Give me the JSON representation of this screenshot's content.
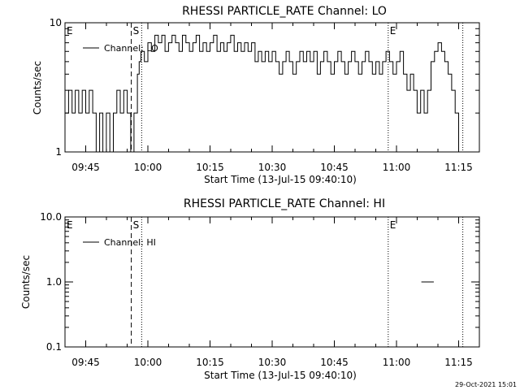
{
  "footer": {
    "timestamp": "29-Oct-2021 15:01"
  },
  "chart_data": [
    {
      "type": "line",
      "title": "RHESSI PARTICLE_RATE Channel: LO",
      "xlabel": "Start Time (13-Jul-15 09:40:10)",
      "ylabel": "Counts/sec",
      "yscale": "log",
      "ylim": [
        1,
        10
      ],
      "xlim": [
        "09:40",
        "11:20"
      ],
      "x_ticks": [
        "09:45",
        "10:00",
        "10:15",
        "10:30",
        "10:45",
        "11:00",
        "11:15"
      ],
      "y_ticks": [
        "1",
        "10"
      ],
      "legend": {
        "placement": "top-left",
        "entries": [
          "Channel: LO"
        ]
      },
      "markers": [
        {
          "label": "E",
          "time": "09:40",
          "style": "none"
        },
        {
          "label": "S",
          "time": "09:56",
          "style": "dashed"
        },
        {
          "label": "",
          "time": "09:58.5",
          "style": "dotted"
        },
        {
          "label": "E",
          "time": "10:58",
          "style": "dotted"
        },
        {
          "label": "",
          "time": "11:16",
          "style": "dotted"
        }
      ],
      "series": [
        {
          "name": "Channel: LO",
          "x": [
            9.667,
            9.681,
            9.695,
            9.708,
            9.722,
            9.736,
            9.75,
            9.764,
            9.778,
            9.792,
            9.806,
            9.819,
            9.833,
            9.847,
            9.861,
            9.875,
            9.889,
            9.903,
            9.917,
            9.931,
            9.944,
            9.958,
            9.965,
            9.972,
            9.986,
            10.0,
            10.014,
            10.028,
            10.042,
            10.056,
            10.069,
            10.083,
            10.097,
            10.111,
            10.125,
            10.139,
            10.153,
            10.167,
            10.181,
            10.194,
            10.208,
            10.222,
            10.236,
            10.25,
            10.264,
            10.278,
            10.292,
            10.306,
            10.319,
            10.333,
            10.347,
            10.361,
            10.375,
            10.389,
            10.403,
            10.417,
            10.431,
            10.444,
            10.458,
            10.472,
            10.486,
            10.5,
            10.514,
            10.528,
            10.542,
            10.556,
            10.569,
            10.583,
            10.597,
            10.611,
            10.625,
            10.639,
            10.653,
            10.667,
            10.681,
            10.694,
            10.708,
            10.722,
            10.736,
            10.75,
            10.764,
            10.778,
            10.792,
            10.806,
            10.819,
            10.833,
            10.847,
            10.861,
            10.875,
            10.889,
            10.903,
            10.917,
            10.931,
            10.944,
            10.958,
            10.972,
            10.986,
            11.0,
            11.014,
            11.028,
            11.042,
            11.056,
            11.069,
            11.083,
            11.097,
            11.111,
            11.125,
            11.139,
            11.153,
            11.167,
            11.181,
            11.194,
            11.208,
            11.222,
            11.236,
            11.25,
            11.264
          ],
          "y": [
            2,
            3,
            2,
            3,
            2,
            3,
            2,
            3,
            2,
            1,
            2,
            1,
            2,
            1,
            2,
            3,
            2,
            3,
            2,
            1,
            2,
            4,
            5,
            6,
            5,
            7,
            6,
            8,
            7,
            8,
            6,
            7,
            8,
            7,
            6,
            8,
            7,
            6,
            7,
            8,
            6,
            7,
            6,
            7,
            8,
            6,
            7,
            6,
            7,
            8,
            6,
            7,
            6,
            7,
            6,
            7,
            5,
            6,
            5,
            6,
            5,
            6,
            5,
            4,
            5,
            6,
            5,
            4,
            5,
            6,
            5,
            6,
            5,
            6,
            4,
            5,
            6,
            5,
            4,
            5,
            6,
            5,
            4,
            5,
            6,
            5,
            4,
            5,
            6,
            5,
            4,
            5,
            4,
            5,
            6,
            5,
            4,
            5,
            6,
            4,
            3,
            4,
            3,
            2,
            3,
            2,
            3,
            5,
            6,
            7,
            6,
            5,
            4,
            3,
            2,
            1,
            1
          ]
        }
      ]
    },
    {
      "type": "line",
      "title": "RHESSI PARTICLE_RATE Channel: HI",
      "xlabel": "Start Time (13-Jul-15 09:40:10)",
      "ylabel": "Counts/sec",
      "yscale": "log",
      "ylim": [
        0.1,
        10
      ],
      "xlim": [
        "09:40",
        "11:20"
      ],
      "x_ticks": [
        "09:45",
        "10:00",
        "10:15",
        "10:30",
        "10:45",
        "11:00",
        "11:15"
      ],
      "y_ticks": [
        "0.1",
        "1.0",
        "10.0"
      ],
      "legend": {
        "placement": "top-left",
        "entries": [
          "Channel: HI"
        ]
      },
      "markers": [
        {
          "label": "E",
          "time": "09:40",
          "style": "none"
        },
        {
          "label": "S",
          "time": "09:56",
          "style": "dashed"
        },
        {
          "label": "",
          "time": "09:58.5",
          "style": "dotted"
        },
        {
          "label": "E",
          "time": "10:58",
          "style": "dotted"
        },
        {
          "label": "",
          "time": "11:16",
          "style": "dotted"
        }
      ],
      "series": [
        {
          "name": "Channel: HI",
          "x": [
            11.1,
            11.117,
            11.133
          ],
          "y": [
            1,
            1,
            1
          ]
        }
      ]
    }
  ]
}
